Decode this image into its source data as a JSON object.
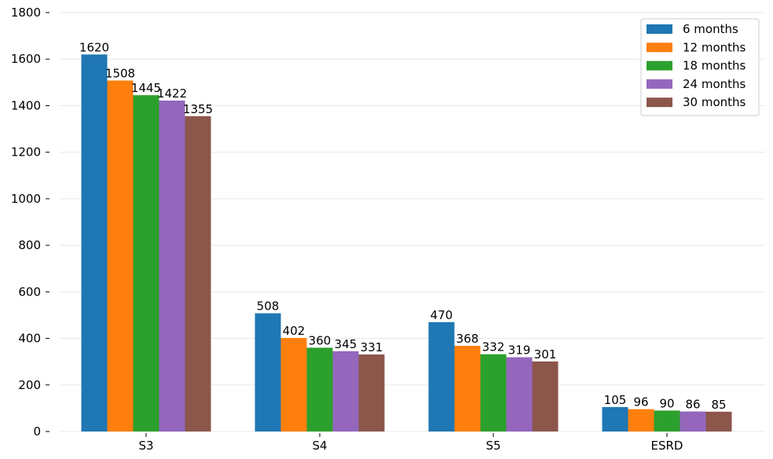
{
  "chart_data": {
    "type": "bar",
    "title": "",
    "xlabel": "",
    "ylabel": "",
    "categories": [
      "S3",
      "S4",
      "S5",
      "ESRD"
    ],
    "series": [
      {
        "name": "6 months",
        "color": "#1f77b4",
        "values": [
          1620,
          508,
          470,
          105
        ]
      },
      {
        "name": "12 months",
        "color": "#ff7f0e",
        "values": [
          1508,
          402,
          368,
          96
        ]
      },
      {
        "name": "18 months",
        "color": "#2ca02c",
        "values": [
          1445,
          360,
          332,
          90
        ]
      },
      {
        "name": "24 months",
        "color": "#9467bd",
        "values": [
          1422,
          345,
          319,
          86
        ]
      },
      {
        "name": "30 months",
        "color": "#8c564b",
        "values": [
          1355,
          331,
          301,
          85
        ]
      }
    ],
    "ylim": [
      0,
      1800
    ],
    "yticks": [
      0,
      200,
      400,
      600,
      800,
      1000,
      1200,
      1400,
      1600,
      1800
    ],
    "grid": "horizontal",
    "legend_position": "top-right",
    "data_labels": true
  }
}
